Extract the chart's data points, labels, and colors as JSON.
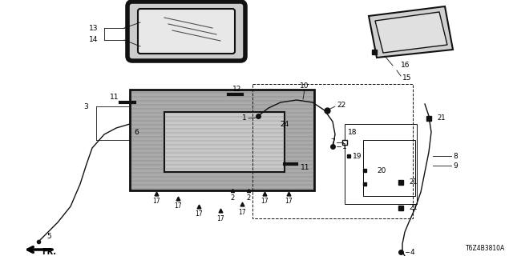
{
  "bg_color": "#ffffff",
  "line_color": "#111111",
  "diagram_code": "T6Z4B3810A",
  "fig_width": 6.4,
  "fig_height": 3.2,
  "dpi": 100
}
